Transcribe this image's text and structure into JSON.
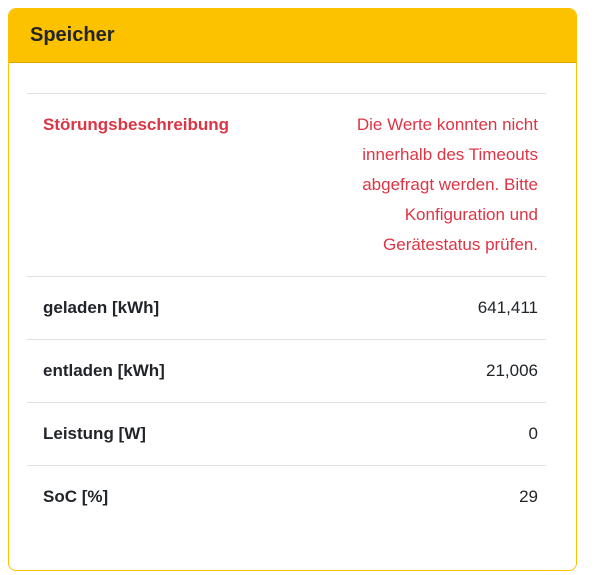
{
  "card": {
    "title": "Speicher",
    "rows": [
      {
        "label": "Störungsbeschreibung",
        "value": "Die Werte konnten nicht innerhalb des Timeouts abgefragt werden. Bitte Konfiguration und Gerätestatus prüfen.",
        "status": "error"
      },
      {
        "label": "geladen [kWh]",
        "value": "641,411",
        "status": "normal"
      },
      {
        "label": "entladen [kWh]",
        "value": "21,006",
        "status": "normal"
      },
      {
        "label": "Leistung [W]",
        "value": "0",
        "status": "normal"
      },
      {
        "label": "SoC [%]",
        "value": "29",
        "status": "normal"
      }
    ],
    "colors": {
      "header_background": "#fcc200",
      "card_border": "#fcc200",
      "error_text": "#dc3545",
      "text": "#212529",
      "divider": "#dee2e6"
    }
  }
}
